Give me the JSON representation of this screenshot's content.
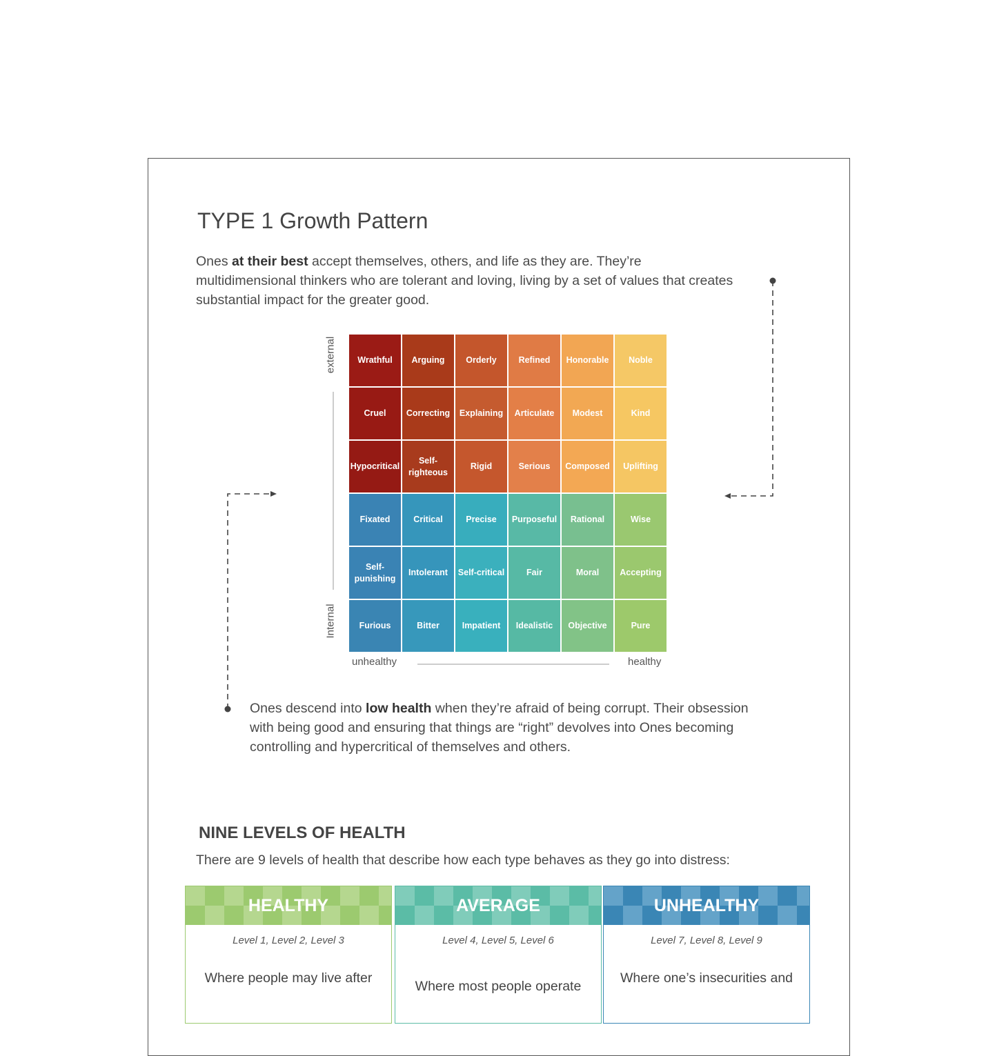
{
  "title": "TYPE 1 Growth Pattern",
  "intro": [
    "Ones ",
    "at their best",
    " accept themselves, others, and life as they are. They’re multidimensional thinkers who are tolerant and loving, living by a set of values that creates substantial impact for the greater good."
  ],
  "grid": {
    "y_axis": {
      "top": "external",
      "bottom": "Internal"
    },
    "x_axis": {
      "left": "unhealthy",
      "right": "healthy"
    },
    "rows": [
      [
        "Wrathful",
        "Arguing",
        "Orderly",
        "Refined",
        "Honorable",
        "Noble"
      ],
      [
        "Cruel",
        "Correcting",
        "Explaining",
        "Articulate",
        "Modest",
        "Kind"
      ],
      [
        "Hypocritical",
        "Self-righteous",
        "Rigid",
        "Serious",
        "Composed",
        "Uplifting"
      ],
      [
        "Fixated",
        "Critical",
        "Precise",
        "Purposeful",
        "Rational",
        "Wise"
      ],
      [
        "Self-punishing",
        "Intolerant",
        "Self-critical",
        "Fair",
        "Moral",
        "Accepting"
      ],
      [
        "Furious",
        "Bitter",
        "Impatient",
        "Idealistic",
        "Objective",
        "Pure"
      ]
    ]
  },
  "low_health": [
    "Ones descend into ",
    "low health",
    " when they’re afraid of being corrupt. Their obsession with being good and ensuring that things are “right” devolves into Ones becoming controlling and hypercritical of themselves and others."
  ],
  "levels": {
    "heading": "NINE LEVELS OF HEALTH",
    "subtitle": "There are 9 levels of health that describe how each type behaves as they go into distress:",
    "cards": [
      {
        "title": "HEALTHY",
        "levels": "Level 1, Level 2, Level 3",
        "text": "Where people may live after"
      },
      {
        "title": "AVERAGE",
        "levels": "Level 4, Level 5, Level 6",
        "text": "Where most people operate"
      },
      {
        "title": "UNHEALTHY",
        "levels": "Level 7, Level 8, Level 9",
        "text": "Where one’s insecurities and"
      }
    ]
  }
}
